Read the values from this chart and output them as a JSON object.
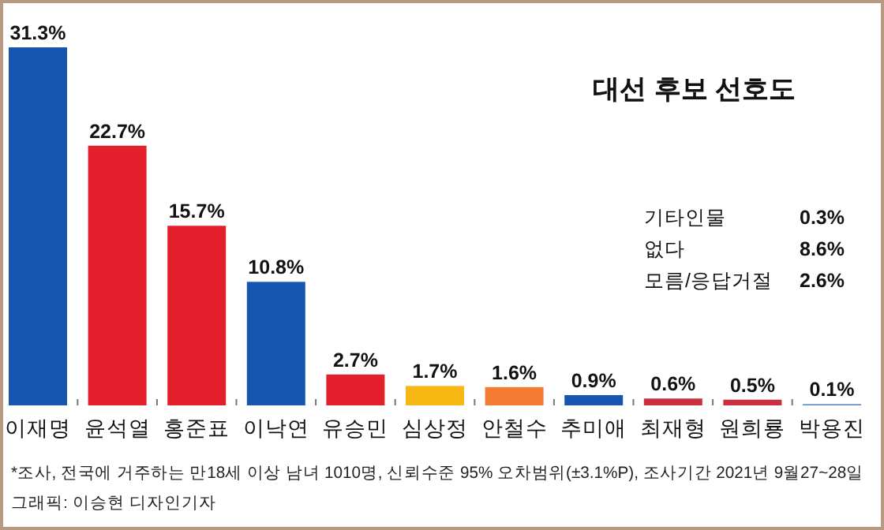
{
  "chart_data": {
    "type": "bar",
    "title": "대선 후보 선호도",
    "categories": [
      "이재명",
      "윤석열",
      "홍준표",
      "이낙연",
      "유승민",
      "심상정",
      "안철수",
      "추미애",
      "최재형",
      "원희룡",
      "박용진"
    ],
    "values": [
      31.3,
      22.7,
      15.7,
      10.8,
      2.7,
      1.7,
      1.6,
      0.9,
      0.6,
      0.5,
      0.1
    ],
    "colors": [
      "#1656b0",
      "#e21f2b",
      "#e21f2b",
      "#1656b0",
      "#e21f2b",
      "#f8b814",
      "#f47b34",
      "#1656b0",
      "#c92f3c",
      "#c92f3c",
      "#5a86c4"
    ],
    "value_labels": [
      "31.3%",
      "22.7%",
      "15.7%",
      "10.8%",
      "2.7%",
      "1.7%",
      "1.6%",
      "0.9%",
      "0.6%",
      "0.5%",
      "0.1%"
    ],
    "annotations": [
      "기타인물 0.3%",
      "없다 8.6%",
      "모름/응답거절 2.6%",
      "*조사, 전국에 거주하는 만18세 이상 남녀 1010명, 신뢰수준 95% 오차범위(±3.1%P), 조사기간 2021년 9월27~28일",
      "그래픽: 이승현 디자인기자"
    ]
  }
}
